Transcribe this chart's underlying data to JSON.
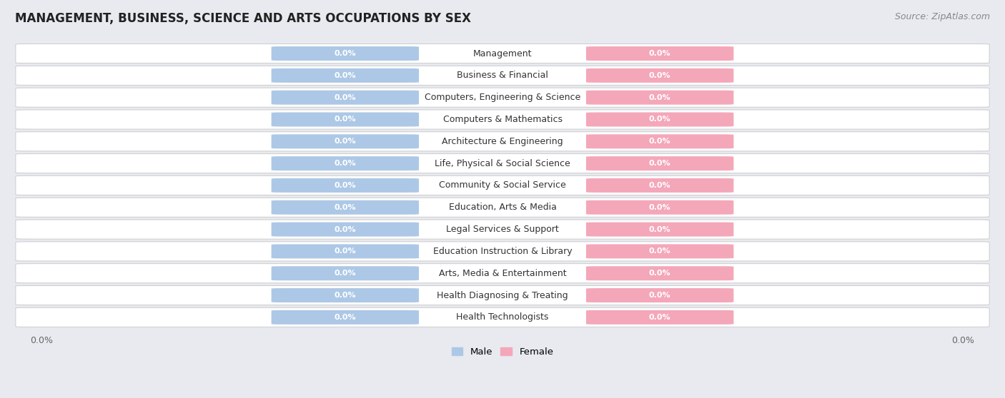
{
  "title": "MANAGEMENT, BUSINESS, SCIENCE AND ARTS OCCUPATIONS BY SEX",
  "source": "Source: ZipAtlas.com",
  "categories": [
    "Management",
    "Business & Financial",
    "Computers, Engineering & Science",
    "Computers & Mathematics",
    "Architecture & Engineering",
    "Life, Physical & Social Science",
    "Community & Social Service",
    "Education, Arts & Media",
    "Legal Services & Support",
    "Education Instruction & Library",
    "Arts, Media & Entertainment",
    "Health Diagnosing & Treating",
    "Health Technologists"
  ],
  "male_values": [
    0.0,
    0.0,
    0.0,
    0.0,
    0.0,
    0.0,
    0.0,
    0.0,
    0.0,
    0.0,
    0.0,
    0.0,
    0.0
  ],
  "female_values": [
    0.0,
    0.0,
    0.0,
    0.0,
    0.0,
    0.0,
    0.0,
    0.0,
    0.0,
    0.0,
    0.0,
    0.0,
    0.0
  ],
  "male_color": "#adc8e6",
  "female_color": "#f4a7b9",
  "male_label": "Male",
  "female_label": "Female",
  "background_color": "#e8eaf0",
  "row_color_even": "#f5f5f7",
  "row_color_odd": "#eaecf0",
  "title_fontsize": 12,
  "source_fontsize": 9,
  "bar_label_fontsize": 8,
  "cat_label_fontsize": 9,
  "tick_fontsize": 9,
  "xlim_left": "0.0%",
  "xlim_right": "0.0%"
}
